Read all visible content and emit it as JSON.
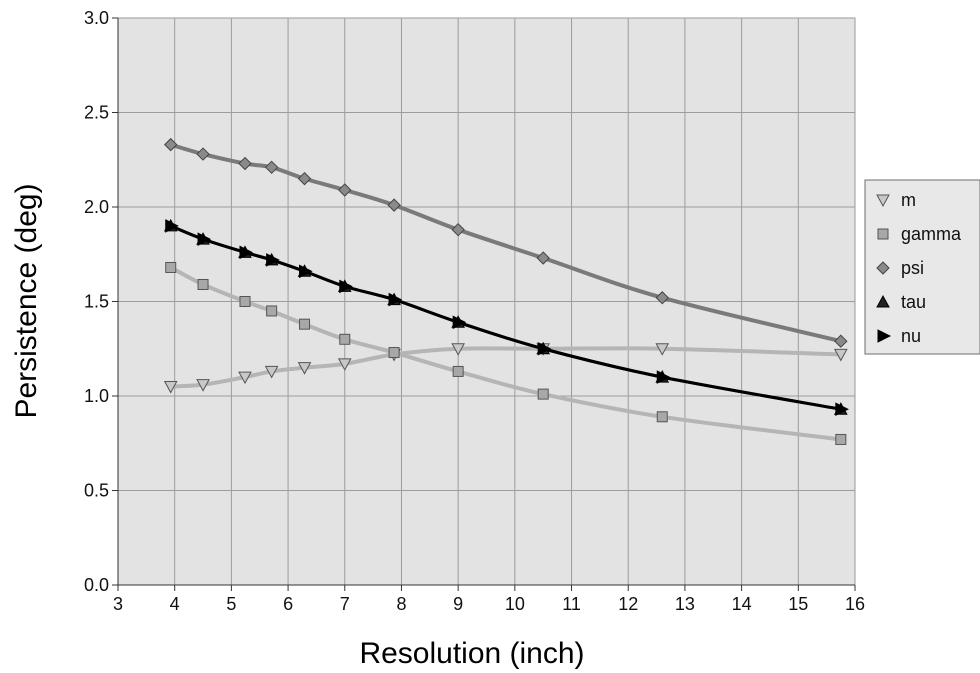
{
  "chart_data": {
    "type": "line",
    "title": "",
    "xlabel": "Resolution (inch)",
    "ylabel": "Persistence (deg)",
    "xlim": [
      3,
      16
    ],
    "ylim": [
      0.0,
      3.0
    ],
    "x_ticks": [
      "3",
      "4",
      "5",
      "6",
      "7",
      "8",
      "9",
      "10",
      "11",
      "12",
      "13",
      "14",
      "15",
      "16"
    ],
    "y_ticks": [
      "0.0",
      "0.5",
      "1.0",
      "1.5",
      "2.0",
      "2.5",
      "3.0"
    ],
    "grid": true,
    "legend_position": "right",
    "colors": {
      "plot_bg": "#e3e3e3",
      "grid": "#ffffff",
      "m": "#b3b3b3",
      "gamma": "#b3b3b3",
      "psi": "#7a7a7a",
      "tau": "#2a2a2a",
      "nu": "#000000"
    },
    "series": [
      {
        "name": "m",
        "marker": "triangle-down",
        "x": [
          3.93,
          4.5,
          5.24,
          5.71,
          6.29,
          7.0,
          7.87,
          9.0,
          10.5,
          12.6,
          15.75
        ],
        "y": [
          1.05,
          1.06,
          1.1,
          1.13,
          1.15,
          1.17,
          1.22,
          1.25,
          1.25,
          1.25,
          1.22
        ]
      },
      {
        "name": "gamma",
        "marker": "square",
        "x": [
          3.93,
          4.5,
          5.24,
          5.71,
          6.29,
          7.0,
          7.87,
          9.0,
          10.5,
          12.6,
          15.75
        ],
        "y": [
          1.68,
          1.59,
          1.5,
          1.45,
          1.38,
          1.3,
          1.23,
          1.13,
          1.01,
          0.89,
          0.77
        ]
      },
      {
        "name": "psi",
        "marker": "diamond",
        "x": [
          3.93,
          4.5,
          5.24,
          5.71,
          6.29,
          7.0,
          7.87,
          9.0,
          10.5,
          12.6,
          15.75
        ],
        "y": [
          2.33,
          2.28,
          2.23,
          2.21,
          2.15,
          2.09,
          2.01,
          1.88,
          1.73,
          1.52,
          1.29
        ]
      },
      {
        "name": "tau",
        "marker": "triangle-up",
        "x": [
          3.93,
          4.5,
          5.24,
          5.71,
          6.29,
          7.0,
          7.87,
          9.0,
          10.5,
          12.6,
          15.75
        ],
        "y": [
          1.9,
          1.83,
          1.76,
          1.72,
          1.66,
          1.58,
          1.51,
          1.39,
          1.25,
          1.1,
          0.93
        ]
      },
      {
        "name": "nu",
        "marker": "triangle-right",
        "x": [
          3.93,
          4.5,
          5.24,
          5.71,
          6.29,
          7.0,
          7.87,
          9.0,
          10.5,
          12.6,
          15.75
        ],
        "y": [
          1.9,
          1.83,
          1.76,
          1.72,
          1.66,
          1.58,
          1.51,
          1.39,
          1.25,
          1.1,
          0.93
        ]
      }
    ]
  }
}
